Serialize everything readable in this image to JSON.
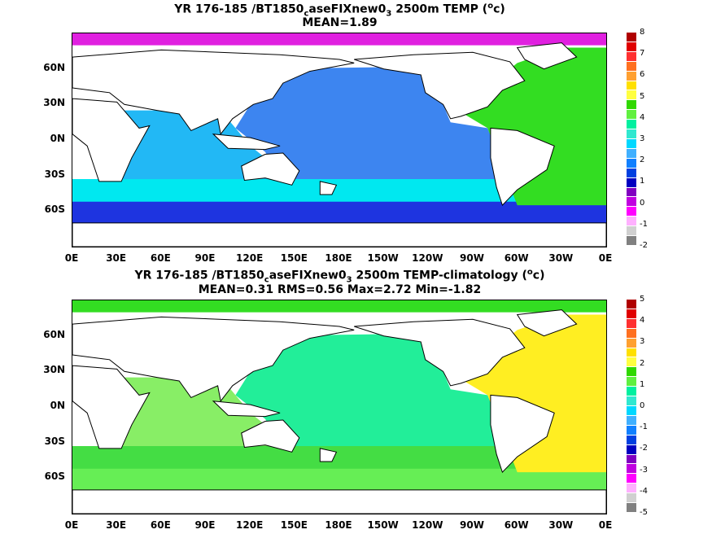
{
  "panels": [
    {
      "title_parts": [
        "YR 176-185 /BT1850",
        "c",
        "aseFIXnew0",
        "3",
        " 2500m TEMP (",
        "o",
        "c)"
      ],
      "stats": "MEAN=1.89",
      "colorbar_labels": [
        "8",
        "7",
        "6",
        "5",
        "4",
        "3",
        "2",
        "1",
        "0",
        "-1",
        "-2"
      ],
      "colorbar_colors": [
        "#b00000",
        "#e00000",
        "#ff3030",
        "#ff7020",
        "#ffa030",
        "#ffe000",
        "#ffff40",
        "#30d800",
        "#60f040",
        "#00f0a0",
        "#30e8d0",
        "#00d8ff",
        "#40b0ff",
        "#1080ff",
        "#0040e0",
        "#0000c0",
        "#8000c0",
        "#c000e0",
        "#ff00ff",
        "#ffb0ff",
        "#d0d0d0",
        "#808080"
      ],
      "ocean_fills": [
        {
          "region": "pacific",
          "color": "#3d85f0"
        },
        {
          "region": "indian",
          "color": "#22b8f5"
        },
        {
          "region": "southern",
          "color": "#00e8f0"
        },
        {
          "region": "antarctic",
          "color": "#1e34e0"
        },
        {
          "region": "atlantic",
          "color": "#33dd22"
        },
        {
          "region": "arctic",
          "color": "#e020e0"
        }
      ]
    },
    {
      "title_parts": [
        "YR 176-185 /BT1850",
        "c",
        "aseFIXnew0",
        "3",
        " 2500m TEMP-climatology (",
        "o",
        "c)"
      ],
      "stats": "MEAN=0.31   RMS=0.56   Max=2.72   Min=-1.82",
      "colorbar_labels": [
        "5",
        "4",
        "3",
        "2",
        "1",
        "0",
        "-1",
        "-2",
        "-3",
        "-4",
        "-5"
      ],
      "colorbar_colors": [
        "#b00000",
        "#e00000",
        "#ff3030",
        "#ff7020",
        "#ffa030",
        "#ffe000",
        "#ffff40",
        "#30d800",
        "#60f040",
        "#00f0a0",
        "#30e8d0",
        "#00d8ff",
        "#40b0ff",
        "#1080ff",
        "#0040e0",
        "#0000c0",
        "#8000c0",
        "#c000e0",
        "#ff00ff",
        "#ffb0ff",
        "#d0d0d0",
        "#808080"
      ],
      "ocean_fills": [
        {
          "region": "pacific",
          "color": "#22ee99"
        },
        {
          "region": "indian",
          "color": "#88ee66"
        },
        {
          "region": "southern",
          "color": "#44dd44"
        },
        {
          "region": "antarctic",
          "color": "#66ee55"
        },
        {
          "region": "atlantic",
          "color": "#ffee22"
        },
        {
          "region": "arctic",
          "color": "#33dd22"
        }
      ]
    }
  ],
  "lat_labels": [
    "60N",
    "30N",
    "0N",
    "30S",
    "60S"
  ],
  "lon_labels": [
    "0E",
    "30E",
    "60E",
    "90E",
    "120E",
    "150E",
    "180E",
    "150W",
    "120W",
    "90W",
    "60W",
    "30W",
    "0E"
  ]
}
